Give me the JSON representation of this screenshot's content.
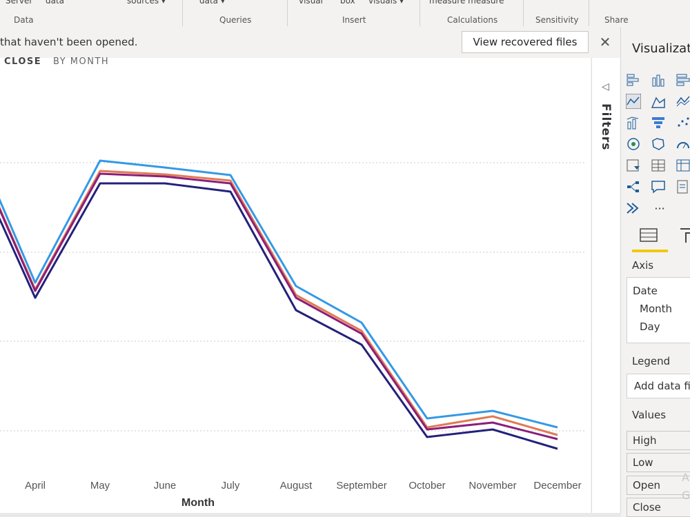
{
  "ribbon": {
    "top_labels": [
      "Server",
      "data",
      "sources ▾",
      "data ▾",
      "visual",
      "box",
      "visuals ▾",
      "measure measure"
    ],
    "groups": [
      "Data",
      "Queries",
      "Insert",
      "Calculations",
      "Sensitivity",
      "Share"
    ]
  },
  "message_bar": {
    "text": "that haven't been opened.",
    "button": "View recovered files",
    "close": "✕"
  },
  "chart_chips": [
    "CLOSE",
    "BY MONTH"
  ],
  "filters": {
    "label": "Filters"
  },
  "viz_pane": {
    "title": "Visualizations",
    "more": "···",
    "axis_label": "Axis",
    "axis_fields": [
      "Date",
      "Month",
      "Day"
    ],
    "legend_label": "Legend",
    "legend_placeholder": "Add data fields here",
    "values_label": "Values",
    "value_fields": [
      "High",
      "Low",
      "Open",
      "Close"
    ],
    "watermark": "A G"
  },
  "chart_data": {
    "type": "line",
    "xlabel": "Month",
    "categories": [
      "April",
      "May",
      "June",
      "July",
      "August",
      "September",
      "October",
      "November",
      "December"
    ],
    "series": [
      {
        "name": "High",
        "color": "#3399e6",
        "values": [
          410,
          233,
          243,
          254,
          415,
          468,
          607,
          596,
          620
        ]
      },
      {
        "name": "Open",
        "color": "#e07a54",
        "values": [
          420,
          248,
          253,
          262,
          428,
          480,
          620,
          604,
          631
        ]
      },
      {
        "name": "Close",
        "color": "#8a1f7a",
        "values": [
          422,
          252,
          256,
          266,
          432,
          484,
          623,
          613,
          637
        ]
      },
      {
        "name": "Low",
        "color": "#23217a",
        "values": [
          432,
          266,
          266,
          278,
          450,
          500,
          634,
          623,
          651
        ]
      }
    ],
    "series_start_value": {
      "High": 282,
      "Open": 294,
      "Close": 296,
      "Low": 310
    }
  }
}
